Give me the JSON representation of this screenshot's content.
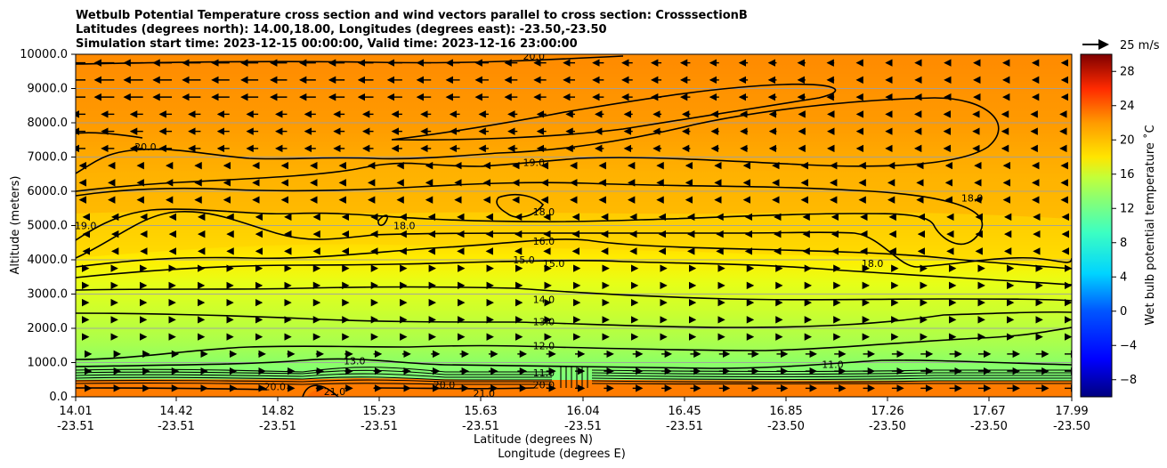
{
  "chart_data": {
    "type": "contour",
    "title_lines": [
      "Wetbulb Potential Temperature cross section and wind vectors parallel to cross section: CrosssectionB",
      "Latitudes (degrees north): 14.00,18.00, Longitudes (degrees east): -23.50,-23.50",
      "Simulation start time: 2023-12-15 00:00:00, Valid time: 2023-12-16 23:00:00"
    ],
    "xlabel": "Latitude (degrees N)",
    "xlabel2": "Longitude (degrees E)",
    "ylabel": "Altitude (meters)",
    "x_ticks": [
      {
        "lat": "14.01",
        "lon": "-23.51"
      },
      {
        "lat": "14.42",
        "lon": "-23.51"
      },
      {
        "lat": "14.82",
        "lon": "-23.51"
      },
      {
        "lat": "15.23",
        "lon": "-23.51"
      },
      {
        "lat": "15.63",
        "lon": "-23.51"
      },
      {
        "lat": "16.04",
        "lon": "-23.51"
      },
      {
        "lat": "16.45",
        "lon": "-23.51"
      },
      {
        "lat": "16.85",
        "lon": "-23.50"
      },
      {
        "lat": "17.26",
        "lon": "-23.50"
      },
      {
        "lat": "17.67",
        "lon": "-23.50"
      },
      {
        "lat": "17.99",
        "lon": "-23.50"
      }
    ],
    "y_ticks": [
      "0.0",
      "1000.0",
      "2000.0",
      "3000.0",
      "4000.0",
      "5000.0",
      "6000.0",
      "7000.0",
      "8000.0",
      "9000.0",
      "10000.0"
    ],
    "ylim": [
      0,
      10000
    ],
    "colorbar": {
      "label": "Wet bulb potential temperature ˚C",
      "range": [
        -10,
        30
      ],
      "ticks": [
        "−8",
        "−4",
        "0",
        "4",
        "8",
        "12",
        "16",
        "20",
        "24",
        "28"
      ],
      "tick_values": [
        -8,
        -4,
        0,
        4,
        8,
        12,
        16,
        20,
        24,
        28
      ]
    },
    "wind_key": {
      "label": "25 m/s"
    },
    "contour_labels": [
      {
        "text": "20.0",
        "x_frac": 0.46,
        "alt": 9950
      },
      {
        "text": "20.0",
        "x_frac": 0.07,
        "alt": 7300
      },
      {
        "text": "19.0",
        "x_frac": 0.46,
        "alt": 6850
      },
      {
        "text": "19.0",
        "x_frac": 0.01,
        "alt": 5000
      },
      {
        "text": "18.0",
        "x_frac": 0.33,
        "alt": 5000
      },
      {
        "text": "18.0",
        "x_frac": 0.47,
        "alt": 5400
      },
      {
        "text": "18.0",
        "x_frac": 0.9,
        "alt": 5800
      },
      {
        "text": "18.0",
        "x_frac": 0.8,
        "alt": 3900
      },
      {
        "text": "16.0",
        "x_frac": 0.47,
        "alt": 4550
      },
      {
        "text": "15.0",
        "x_frac": 0.45,
        "alt": 4000
      },
      {
        "text": "15.0",
        "x_frac": 0.48,
        "alt": 3900
      },
      {
        "text": "14.0",
        "x_frac": 0.47,
        "alt": 2850
      },
      {
        "text": "13.0",
        "x_frac": 0.47,
        "alt": 2200
      },
      {
        "text": "12.0",
        "x_frac": 0.47,
        "alt": 1500
      },
      {
        "text": "11.0",
        "x_frac": 0.76,
        "alt": 950
      },
      {
        "text": "13.0",
        "x_frac": 0.28,
        "alt": 1050
      },
      {
        "text": "20.0",
        "x_frac": 0.2,
        "alt": 300
      },
      {
        "text": "21.0",
        "x_frac": 0.26,
        "alt": 150
      },
      {
        "text": "20.0",
        "x_frac": 0.37,
        "alt": 350
      },
      {
        "text": "21.0",
        "x_frac": 0.41,
        "alt": 100
      },
      {
        "text": "20.0",
        "x_frac": 0.47,
        "alt": 350
      },
      {
        "text": "11.0",
        "x_frac": 0.47,
        "alt": 700
      }
    ],
    "contour_levels": [
      11,
      12,
      13,
      14,
      15,
      16,
      18,
      19,
      20,
      21
    ]
  }
}
